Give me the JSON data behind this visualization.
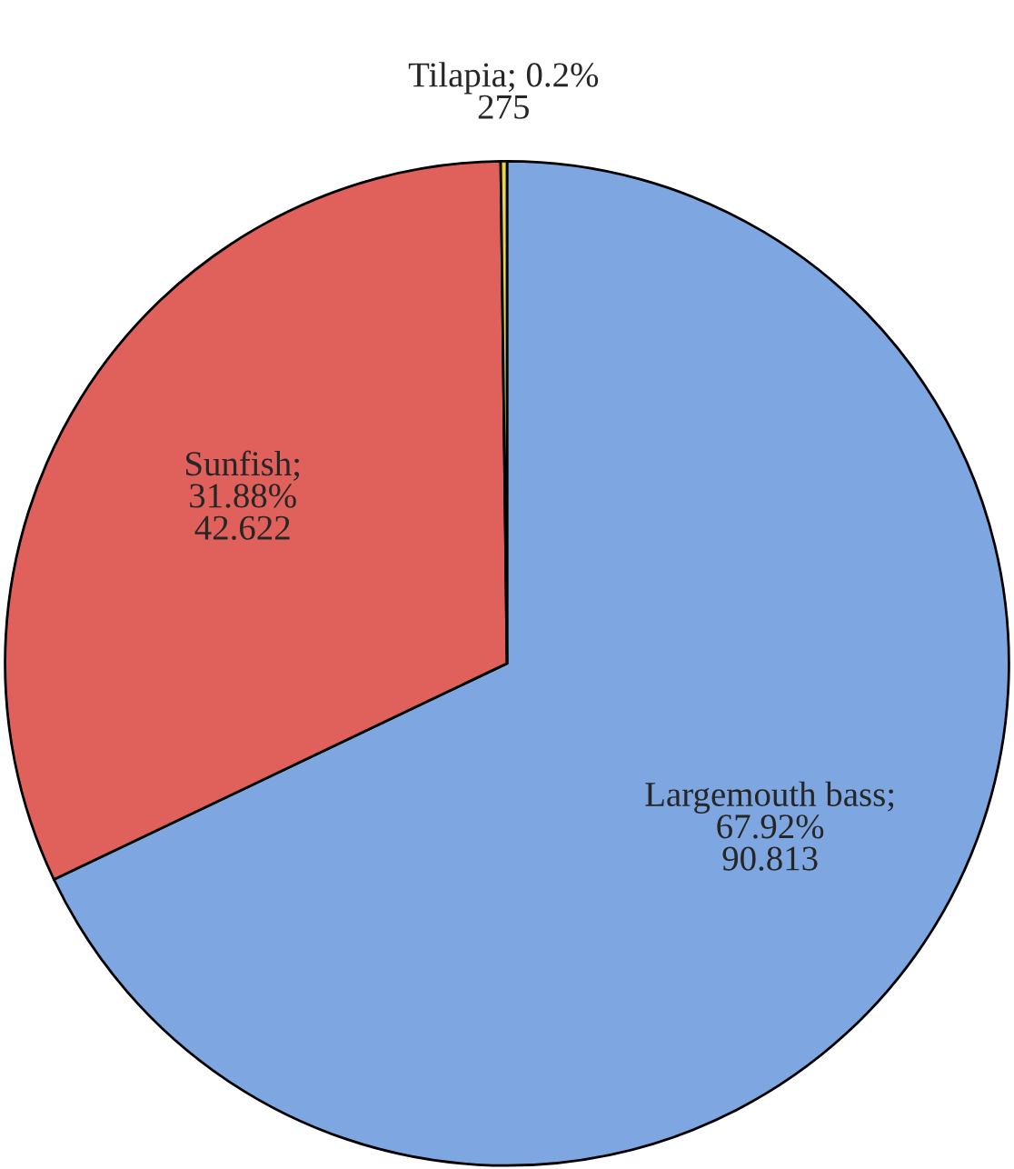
{
  "chart_data": {
    "type": "pie",
    "categories": [
      "Largemouth bass",
      "Sunfish",
      "Tilapia"
    ],
    "values": [
      67.92,
      31.88,
      0.2
    ],
    "colors": [
      "#7ea6e0",
      "#e0605c",
      "#e8d44d"
    ],
    "value_labels": [
      ";\n67.92%\n90.813",
      ";\n31.88%\n42.622",
      "; 0.2%\n275"
    ],
    "legend": false
  }
}
